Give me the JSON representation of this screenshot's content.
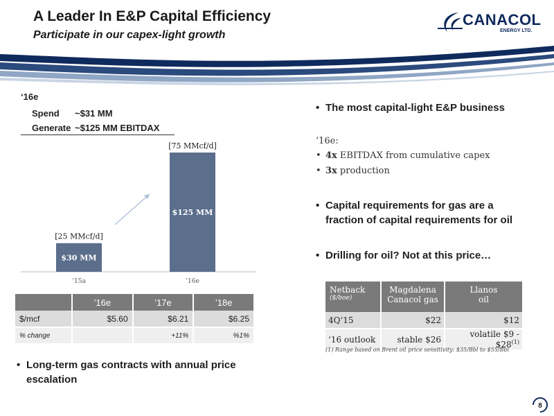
{
  "header": {
    "title": "A Leader In E&P Capital Efficiency",
    "subtitle": "Participate in our capex-light growth"
  },
  "logo": {
    "name": "CANACOL",
    "sub": "ENERGY LTD."
  },
  "spend": {
    "year": "‘16e",
    "rows": [
      {
        "label": "Spend",
        "value": "~$31 MM"
      },
      {
        "label": "Generate",
        "value": "~$125 MM EBITDAX"
      }
    ]
  },
  "chart_data": {
    "type": "bar",
    "categories": [
      "’15a",
      "’16e"
    ],
    "values": [
      30,
      125
    ],
    "bar_labels": [
      "$30 MM",
      "$125 MM"
    ],
    "annotations": [
      "[25 MMcf/d]",
      "[75 MMcf/d]"
    ],
    "bar_color": "#5b6e8c"
  },
  "gas_table": {
    "columns": [
      "",
      "’16e",
      "’17e",
      "’18e"
    ],
    "rows": [
      [
        "$/mcf",
        "$5.60",
        "$6.21",
        "$6.25"
      ],
      [
        "% change",
        "",
        "+11%",
        "%1%"
      ]
    ]
  },
  "bullets": {
    "b1": "The most capital-light E&P business",
    "b1_intro": "’16e:",
    "b1_sub1_bold": "4x",
    "b1_sub1": " EBITDAX from cumulative capex",
    "b1_sub2_bold": "3x",
    "b1_sub2": " production",
    "b2_line1": "Capital requirements for gas are a",
    "b2_line2": "fraction of capital requirements for oil",
    "b3": "Drilling for oil? Not at this price…",
    "b4_line1": "Long-term gas contracts with annual price",
    "b4_line2": "escalation"
  },
  "netback_table": {
    "h1": "Netback",
    "h1_unit": "($/boe)",
    "h2_line1": "Magdalena",
    "h2_line2": "Canacol gas",
    "h3_line1": "Llanos",
    "h3_line2": "oil",
    "rows": [
      [
        "4Q‘15",
        "$22",
        "$12"
      ],
      [
        "‘16 outlook",
        "stable $26",
        "volatile $9 - $28"
      ]
    ],
    "footnote_ref": "(1)",
    "footnote": "(1)  Range based on Brent oil price sensitivity: $35/Bbl to $55/Bbl"
  },
  "page_number": "8",
  "colors": {
    "navy": "#0f2a5c",
    "bar": "#5b6e8c",
    "header_gray": "#7a7a7a"
  }
}
